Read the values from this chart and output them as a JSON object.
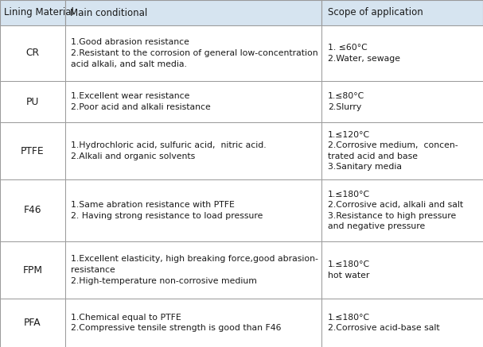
{
  "header": [
    "Lining Material",
    "Main conditional",
    "Scope of application"
  ],
  "header_bg": "#d6e4f0",
  "border_color": "#999999",
  "text_color": "#1a1a1a",
  "rows": [
    {
      "material": "CR",
      "main": "1.Good abrasion resistance\n2.Resistant to the corrosion of general low-concentration\nacid alkali, and salt media.",
      "scope": "1. ≤60°C\n2.Water, sewage"
    },
    {
      "material": "PU",
      "main": "1.Excellent wear resistance\n2.Poor acid and alkali resistance",
      "scope": "1.≤80°C\n2.Slurry"
    },
    {
      "material": "PTFE",
      "main": "1.Hydrochloric acid, sulfuric acid,  nitric acid.\n2.Alkali and organic solvents",
      "scope": "1.≤120°C\n2.Corrosive medium,  concen-\ntrated acid and base\n3.Sanitary media"
    },
    {
      "material": "F46",
      "main": "1.Same abration resistance with PTFE\n2. Having strong resistance to load pressure",
      "scope": "1.≤180°C\n2.Corrosive acid, alkali and salt\n3.Resistance to high pressure\nand negative pressure"
    },
    {
      "material": "FPM",
      "main": "1.Excellent elasticity, high breaking force,good abrasion-\nresistance\n2.High-temperature non-corrosive medium",
      "scope": "1.≤180°C\nhot water"
    },
    {
      "material": "PFA",
      "main": "1.Chemical equal to PTFE\n2.Compressive tensile strength is good than F46",
      "scope": "1.≤180°C\n2.Corrosive acid-base salt"
    }
  ],
  "fig_width": 6.07,
  "fig_height": 4.37,
  "dpi": 100
}
